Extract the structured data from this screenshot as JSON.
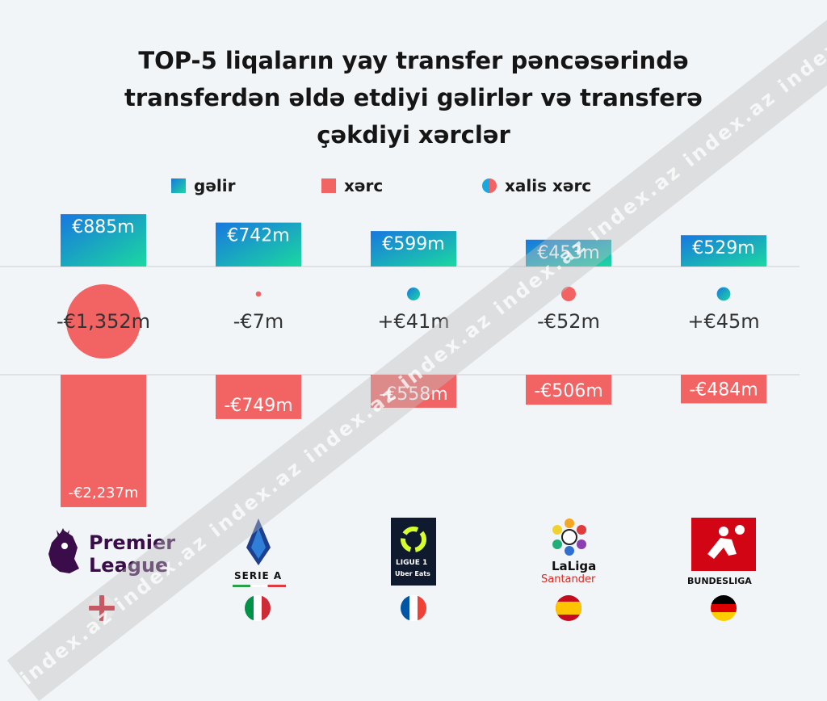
{
  "title_lines": [
    "TOP-5  liqaların yay transfer pəncəsərində",
    "transferdən əldə etdiyi gəlirlər və transferə",
    "çəkdiyi xərclər"
  ],
  "legend": {
    "gain": "gəlir",
    "expense": "xərc",
    "net": "xalis xərc"
  },
  "colors": {
    "gain_start": "#1877e0",
    "gain_end": "#1bd8a0",
    "expense": "#f26464",
    "net_positive": "#1aa8e0"
  },
  "chart_data": {
    "type": "bar",
    "categories": [
      "Premier League",
      "Serie A",
      "Ligue 1",
      "LaLiga",
      "Bundesliga"
    ],
    "series": [
      {
        "name": "gəlir",
        "values": [
          885,
          742,
          599,
          453,
          529
        ],
        "labels": [
          "€885m",
          "€742m",
          "€599m",
          "€453m",
          "€529m"
        ]
      },
      {
        "name": "xərc",
        "values": [
          -2237,
          -749,
          -558,
          -506,
          -484
        ],
        "labels": [
          "-€2,237m",
          "-€749m",
          "-€558m",
          "-€506m",
          "-€484m"
        ]
      },
      {
        "name": "xalis xərc",
        "values": [
          -1352,
          -7,
          41,
          -52,
          45
        ],
        "labels": [
          "-€1,352m",
          "-€7m",
          "+€41m",
          "-€52m",
          "+€45m"
        ]
      }
    ]
  },
  "leagues": [
    {
      "logo_text": "Premier League",
      "logo_lines": [
        "Premier",
        "League"
      ],
      "flag": "England"
    },
    {
      "logo_text": "SERIE A",
      "flag": "Italy"
    },
    {
      "logo_text": "LIGUE 1",
      "logo_sub": "Uber Eats",
      "flag": "France"
    },
    {
      "logo_text": "LaLiga",
      "logo_sub": "Santander",
      "flag": "Spain"
    },
    {
      "logo_text": "BUNDESLIGA",
      "flag": "Germany"
    }
  ],
  "watermark": "index.az"
}
